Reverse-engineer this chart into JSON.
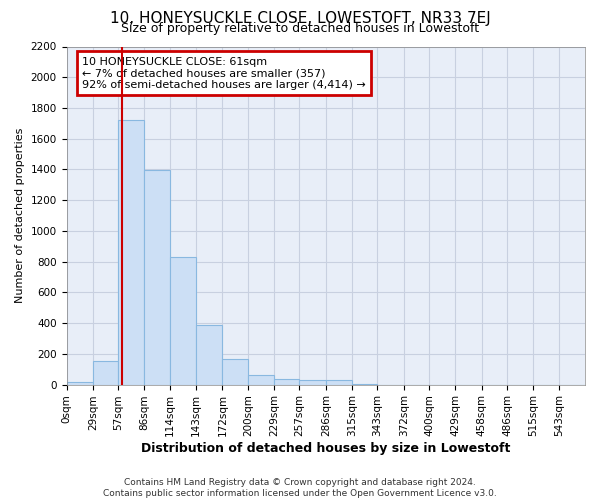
{
  "title_line1": "10, HONEYSUCKLE CLOSE, LOWESTOFT, NR33 7EJ",
  "title_line2": "Size of property relative to detached houses in Lowestoft",
  "xlabel": "Distribution of detached houses by size in Lowestoft",
  "ylabel": "Number of detached properties",
  "footer_line1": "Contains HM Land Registry data © Crown copyright and database right 2024.",
  "footer_line2": "Contains public sector information licensed under the Open Government Licence v3.0.",
  "annotation_line1": "10 HONEYSUCKLE CLOSE: 61sqm",
  "annotation_line2": "← 7% of detached houses are smaller (357)",
  "annotation_line3": "92% of semi-detached houses are larger (4,414) →",
  "property_size": 61,
  "bin_edges": [
    0,
    29,
    57,
    86,
    114,
    143,
    172,
    200,
    229,
    257,
    286,
    315,
    343,
    372,
    400,
    429,
    458,
    486,
    515,
    543,
    572
  ],
  "bar_heights": [
    20,
    155,
    1720,
    1395,
    830,
    385,
    165,
    65,
    38,
    28,
    28,
    5,
    0,
    0,
    0,
    0,
    0,
    0,
    0,
    0
  ],
  "bar_color": "#ccdff5",
  "bar_edge_color": "#89b8e0",
  "highlight_line_color": "#cc0000",
  "annotation_box_color": "#ffffff",
  "annotation_box_edge": "#cc0000",
  "background_color": "#ffffff",
  "plot_bg_color": "#e8eef8",
  "grid_color": "#c8d0e0",
  "ylim": [
    0,
    2200
  ],
  "yticks": [
    0,
    200,
    400,
    600,
    800,
    1000,
    1200,
    1400,
    1600,
    1800,
    2000,
    2200
  ],
  "title1_fontsize": 11,
  "title2_fontsize": 9,
  "ylabel_fontsize": 8,
  "xlabel_fontsize": 9,
  "tick_fontsize": 7.5,
  "footer_fontsize": 6.5,
  "ann_fontsize": 8
}
